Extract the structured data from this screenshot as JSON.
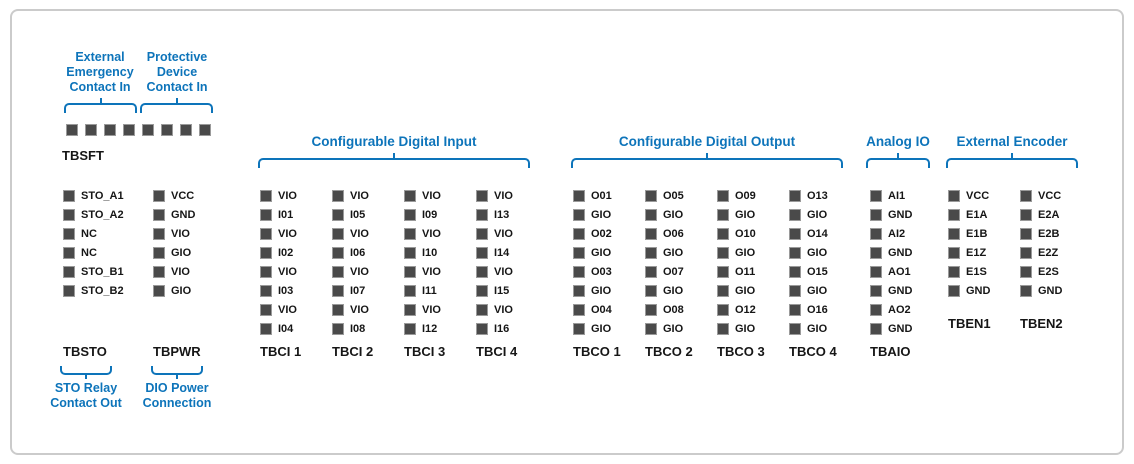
{
  "colors": {
    "accent": "#0d74ba",
    "pin_fill": "#4a4a4a",
    "pin_border": "#9a9a9a",
    "frame_border": "#cbcbcb",
    "text": "#161616",
    "background": "#ffffff"
  },
  "tbsft": {
    "name": "TBSFT",
    "pin_count": 8,
    "annotations": [
      {
        "lines": [
          "External",
          "Emergency",
          "Contact In"
        ],
        "target": "pins 1-4"
      },
      {
        "lines": [
          "Protective",
          "Device",
          "Contact In"
        ],
        "target": "pins 5-8"
      }
    ]
  },
  "sections": [
    {
      "title": "Configurable Digital Input",
      "blocks": [
        "TBCI 1",
        "TBCI 2",
        "TBCI 3",
        "TBCI 4"
      ]
    },
    {
      "title": "Configurable Digital Output",
      "blocks": [
        "TBCO 1",
        "TBCO 2",
        "TBCO 3",
        "TBCO 4"
      ]
    },
    {
      "title": "Analog IO",
      "blocks": [
        "TBAIO"
      ]
    },
    {
      "title": "External Encoder",
      "blocks": [
        "TBEN1",
        "TBEN2"
      ]
    }
  ],
  "blocks": [
    {
      "name": "TBSTO",
      "pins": [
        "STO_A1",
        "STO_A2",
        "NC",
        "NC",
        "STO_B1",
        "STO_B2"
      ]
    },
    {
      "name": "TBPWR",
      "pins": [
        "VCC",
        "GND",
        "VIO",
        "GIO",
        "VIO",
        "GIO"
      ]
    },
    {
      "name": "TBCI 1",
      "pins": [
        "VIO",
        "I01",
        "VIO",
        "I02",
        "VIO",
        "I03",
        "VIO",
        "I04"
      ]
    },
    {
      "name": "TBCI 2",
      "pins": [
        "VIO",
        "I05",
        "VIO",
        "I06",
        "VIO",
        "I07",
        "VIO",
        "I08"
      ]
    },
    {
      "name": "TBCI 3",
      "pins": [
        "VIO",
        "I09",
        "VIO",
        "I10",
        "VIO",
        "I11",
        "VIO",
        "I12"
      ]
    },
    {
      "name": "TBCI 4",
      "pins": [
        "VIO",
        "I13",
        "VIO",
        "I14",
        "VIO",
        "I15",
        "VIO",
        "I16"
      ]
    },
    {
      "name": "TBCO 1",
      "pins": [
        "O01",
        "GIO",
        "O02",
        "GIO",
        "O03",
        "GIO",
        "O04",
        "GIO"
      ]
    },
    {
      "name": "TBCO 2",
      "pins": [
        "O05",
        "GIO",
        "O06",
        "GIO",
        "O07",
        "GIO",
        "O08",
        "GIO"
      ]
    },
    {
      "name": "TBCO 3",
      "pins": [
        "O09",
        "GIO",
        "O10",
        "GIO",
        "O11",
        "GIO",
        "O12",
        "GIO"
      ]
    },
    {
      "name": "TBCO 4",
      "pins": [
        "O13",
        "GIO",
        "O14",
        "GIO",
        "O15",
        "GIO",
        "O16",
        "GIO"
      ]
    },
    {
      "name": "TBAIO",
      "pins": [
        "AI1",
        "GND",
        "AI2",
        "GND",
        "AO1",
        "GND",
        "AO2",
        "GND"
      ]
    },
    {
      "name": "TBEN1",
      "pins": [
        "VCC",
        "E1A",
        "E1B",
        "E1Z",
        "E1S",
        "GND"
      ]
    },
    {
      "name": "TBEN2",
      "pins": [
        "VCC",
        "E2A",
        "E2B",
        "E2Z",
        "E2S",
        "GND"
      ]
    }
  ],
  "bottom_annotations": [
    {
      "lines": [
        "STO Relay",
        "Contact Out"
      ],
      "target": "TBSTO"
    },
    {
      "lines": [
        "DIO Power",
        "Connection"
      ],
      "target": "TBPWR"
    }
  ]
}
